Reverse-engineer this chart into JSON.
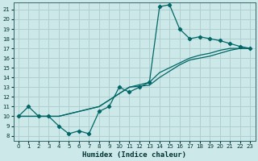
{
  "xlabel": "Humidex (Indice chaleur)",
  "bg_color": "#cde8e8",
  "grid_color": "#b0d0d0",
  "line_color": "#006666",
  "xlim": [
    -0.5,
    23.5
  ],
  "ylim": [
    7.5,
    21.7
  ],
  "xticks": [
    0,
    1,
    2,
    3,
    4,
    5,
    6,
    7,
    8,
    9,
    10,
    11,
    12,
    13,
    14,
    15,
    16,
    17,
    18,
    19,
    20,
    21,
    22,
    23
  ],
  "yticks": [
    8,
    9,
    10,
    11,
    12,
    13,
    14,
    15,
    16,
    17,
    18,
    19,
    20,
    21
  ],
  "curve_x": [
    0,
    1,
    2,
    3,
    4,
    5,
    6,
    7,
    8,
    9,
    10,
    11,
    12,
    13,
    14,
    15,
    16,
    17,
    18,
    19,
    20,
    21,
    22,
    23
  ],
  "curve_y": [
    10,
    11,
    10,
    10,
    9,
    8.2,
    8.5,
    8.2,
    10.5,
    11,
    13,
    12.5,
    13,
    13.5,
    21.3,
    21.5,
    19,
    18,
    18.2,
    18,
    17.8,
    17.5,
    17.2,
    17
  ],
  "diag1_x": [
    0,
    2,
    4,
    8,
    11,
    13,
    14,
    16,
    17,
    18,
    19,
    20,
    21,
    22,
    23
  ],
  "diag1_y": [
    10,
    10,
    10,
    11,
    13,
    13.5,
    14.5,
    15.5,
    16,
    16.3,
    16.5,
    16.8,
    17,
    17,
    17
  ],
  "diag2_x": [
    0,
    4,
    8,
    11,
    13,
    14,
    16,
    17,
    18,
    19,
    20,
    21,
    22,
    23
  ],
  "diag2_y": [
    10,
    10,
    11,
    13,
    13.2,
    14,
    15.3,
    15.8,
    16,
    16.2,
    16.5,
    16.8,
    17,
    17
  ]
}
